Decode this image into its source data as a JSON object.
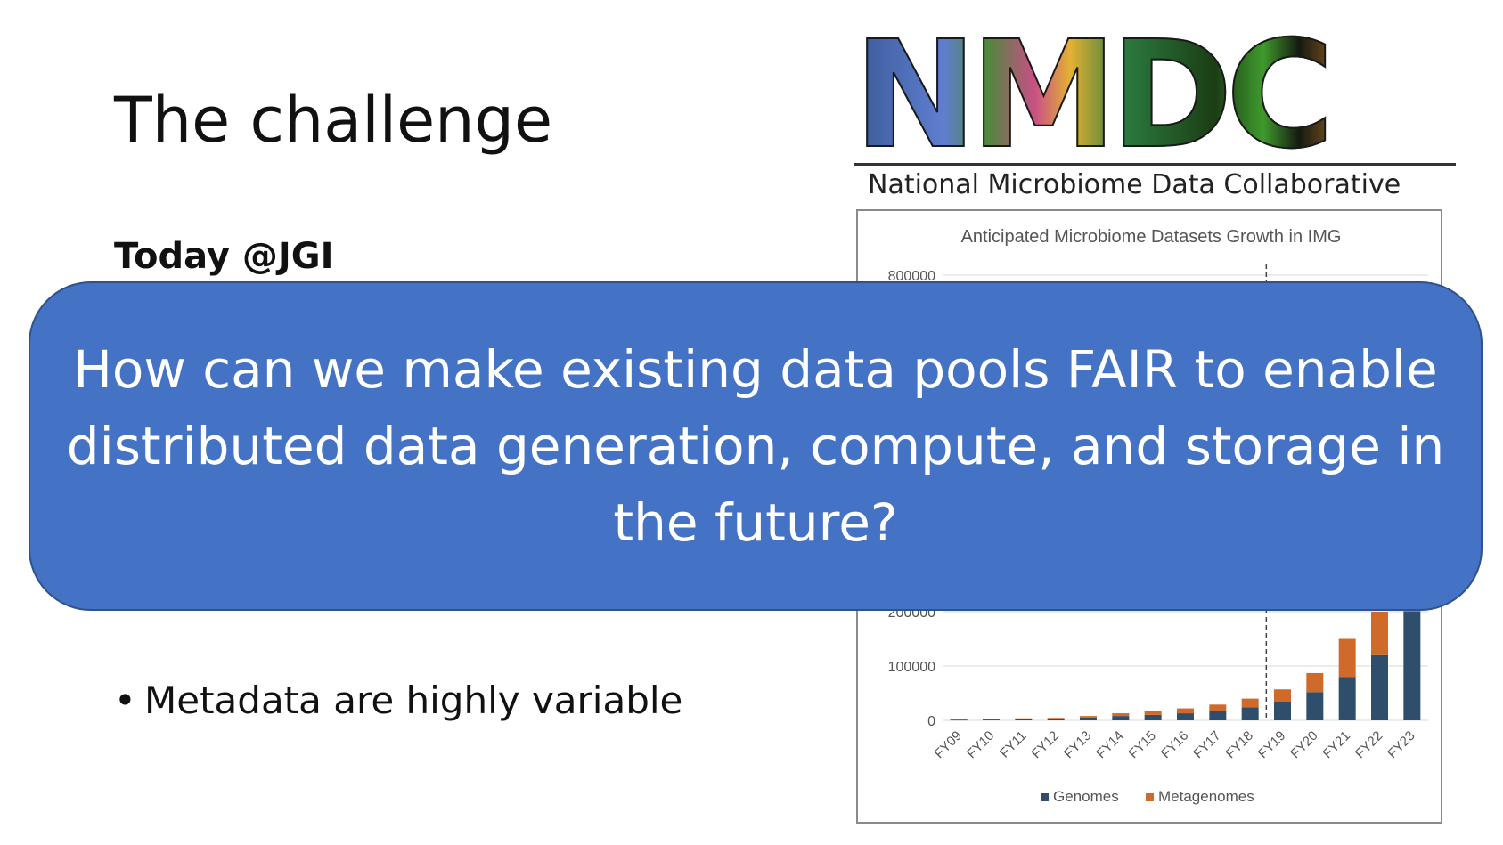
{
  "slide": {
    "title": "The challenge",
    "subheading": "Today @JGI",
    "bullet": "Metadata are highly variable",
    "bullet_marker": "•"
  },
  "logo": {
    "wordmark": "NMDC",
    "subtitle": "National Microbiome Data Collaborative"
  },
  "callout": {
    "text": "How can we make existing data pools FAIR to enable distributed data generation, compute, and storage in the future?"
  },
  "chart_data": {
    "type": "bar",
    "stacked": true,
    "title": "Anticipated Microbiome Datasets Growth in IMG",
    "categories": [
      "FY09",
      "FY10",
      "FY11",
      "FY12",
      "FY13",
      "FY14",
      "FY15",
      "FY16",
      "FY17",
      "FY18",
      "FY19",
      "FY20",
      "FY21",
      "FY22",
      "FY23"
    ],
    "series": [
      {
        "name": "Genomes",
        "color": "#2e4e6b",
        "values": [
          1500,
          2000,
          2500,
          3000,
          5000,
          8000,
          10000,
          13000,
          18000,
          24000,
          35000,
          52000,
          80000,
          120000,
          200000
        ]
      },
      {
        "name": "Metagenomes",
        "color": "#d06a2a",
        "values": [
          800,
          1000,
          1200,
          1500,
          3000,
          5000,
          7000,
          9000,
          11000,
          16000,
          22000,
          35000,
          70000,
          80000,
          130000
        ]
      }
    ],
    "y_ticks": [
      "0",
      "100000",
      "200000",
      "800000"
    ],
    "y_tick_values": [
      0,
      100000,
      200000,
      800000
    ],
    "ylim": [
      0,
      800000
    ],
    "projection_divider_after": "FY18",
    "legend_position": "bottom",
    "gridlines": true
  }
}
